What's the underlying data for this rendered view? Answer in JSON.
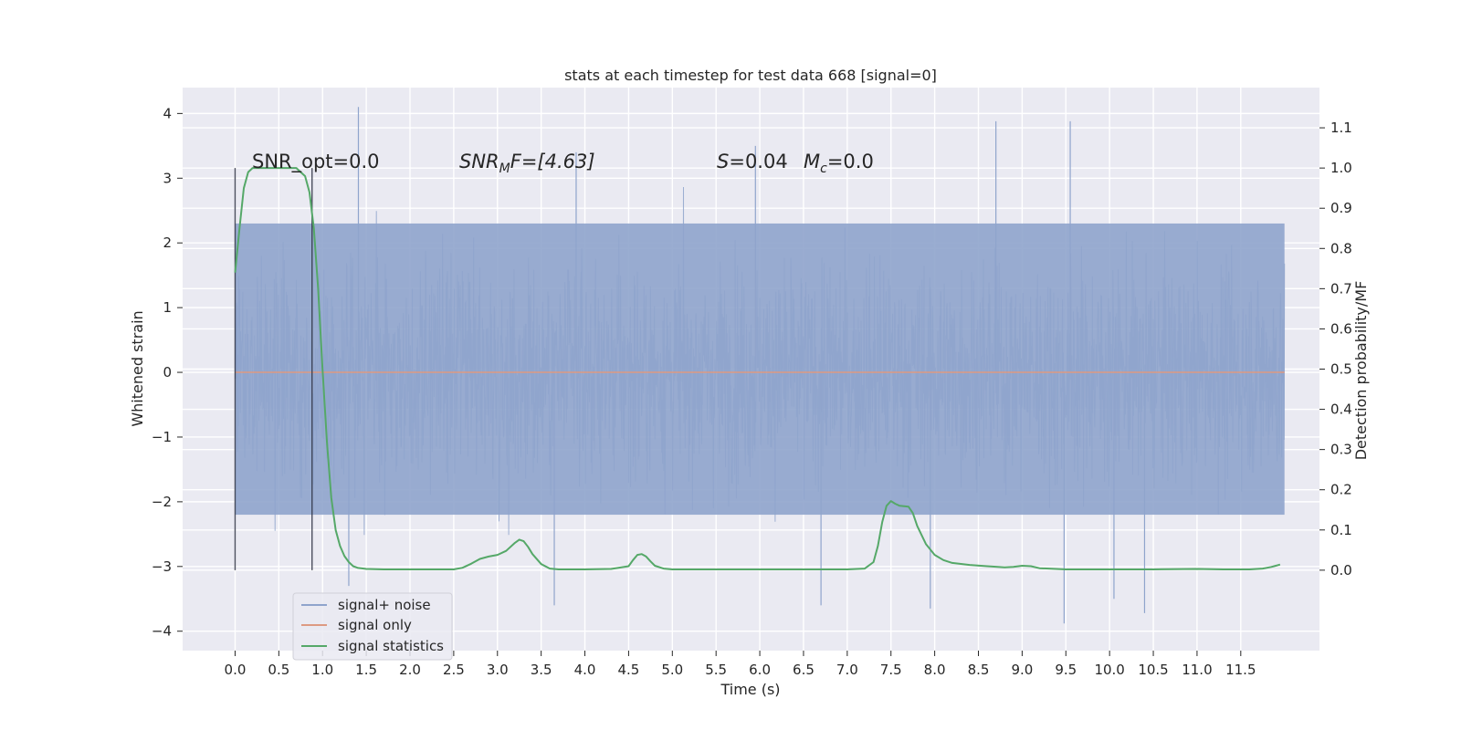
{
  "chart_data": {
    "type": "line",
    "title": "stats at each timestep for test data 668 [signal=0]",
    "xlabel": "Time (s)",
    "ylabel": "Whitened strain",
    "ylabel_right": "Detection probability/MF",
    "xlim": [
      -0.6,
      12.4
    ],
    "ylim": [
      -4.3,
      4.4
    ],
    "ylim_right": [
      -0.2,
      1.2
    ],
    "x_ticks": [
      "0.0",
      "0.5",
      "1.0",
      "1.5",
      "2.0",
      "2.5",
      "3.0",
      "3.5",
      "4.0",
      "4.5",
      "5.0",
      "5.5",
      "6.0",
      "6.5",
      "7.0",
      "7.5",
      "8.0",
      "8.5",
      "9.0",
      "9.5",
      "10.0",
      "10.5",
      "11.0",
      "11.5"
    ],
    "y_ticks": [
      "4",
      "3",
      "2",
      "1",
      "0",
      "−1",
      "−2",
      "−3",
      "−4"
    ],
    "y_ticks_right": [
      "1.1",
      "1.0",
      "0.9",
      "0.8",
      "0.7",
      "0.6",
      "0.5",
      "0.4",
      "0.3",
      "0.2",
      "0.1",
      "0.0"
    ],
    "grid": true,
    "legend_position": "lower-left",
    "annotations": {
      "snr_opt": "SNR_opt=0.0",
      "snr_mf_main": "SNR",
      "snr_mf_sub": "M",
      "snr_mf_tail": "F=[4.63]",
      "s_main": "S",
      "s_tail": "=0.04",
      "mc_main": "M",
      "mc_sub": "c",
      "mc_tail": "=0.0"
    },
    "vertical_markers": [
      0.0,
      0.88
    ],
    "series": [
      {
        "name": "signal+ noise",
        "color": "#8fa4cc",
        "time_range": [
          0.0,
          12.0
        ],
        "band_lower": -2.2,
        "band_upper": 2.3,
        "envelope_extremes": [
          {
            "x": 1.41,
            "y": 4.1
          },
          {
            "x": 8.7,
            "y": 3.88
          },
          {
            "x": 9.55,
            "y": 3.88
          },
          {
            "x": 9.48,
            "y": -3.88
          },
          {
            "x": 10.4,
            "y": -3.72
          },
          {
            "x": 7.95,
            "y": -3.65
          },
          {
            "x": 3.65,
            "y": -3.6
          },
          {
            "x": 6.7,
            "y": -3.6
          },
          {
            "x": 5.95,
            "y": 3.5
          },
          {
            "x": 3.9,
            "y": 3.4
          },
          {
            "x": 10.05,
            "y": -3.5
          },
          {
            "x": 1.3,
            "y": -3.3
          }
        ]
      },
      {
        "name": "signal only",
        "color": "#dd9a82",
        "time_range": [
          0.0,
          12.0
        ],
        "value": 0.0
      },
      {
        "name": "signal statistics",
        "color": "#55a868",
        "axis": "right",
        "x": [
          0.0,
          0.05,
          0.1,
          0.15,
          0.2,
          0.3,
          0.4,
          0.5,
          0.6,
          0.7,
          0.75,
          0.8,
          0.85,
          0.9,
          0.95,
          1.0,
          1.05,
          1.1,
          1.15,
          1.2,
          1.25,
          1.3,
          1.35,
          1.4,
          1.5,
          1.7,
          2.0,
          2.5,
          2.6,
          2.7,
          2.8,
          2.9,
          3.0,
          3.1,
          3.2,
          3.25,
          3.3,
          3.35,
          3.4,
          3.5,
          3.6,
          3.7,
          4.0,
          4.3,
          4.5,
          4.55,
          4.6,
          4.65,
          4.7,
          4.75,
          4.8,
          4.9,
          5.0,
          5.5,
          6.0,
          6.5,
          7.0,
          7.2,
          7.3,
          7.35,
          7.4,
          7.45,
          7.5,
          7.55,
          7.6,
          7.7,
          7.75,
          7.8,
          7.9,
          8.0,
          8.1,
          8.2,
          8.4,
          8.6,
          8.8,
          8.9,
          9.0,
          9.1,
          9.2,
          9.5,
          10.0,
          10.5,
          11.0,
          11.3,
          11.6,
          11.75,
          11.85,
          11.9,
          11.95
        ],
        "y": [
          0.74,
          0.85,
          0.95,
          0.99,
          1.0,
          1.0,
          1.0,
          1.0,
          1.0,
          1.0,
          0.99,
          0.98,
          0.94,
          0.85,
          0.7,
          0.5,
          0.32,
          0.18,
          0.1,
          0.06,
          0.035,
          0.02,
          0.01,
          0.006,
          0.003,
          0.002,
          0.002,
          0.002,
          0.006,
          0.016,
          0.028,
          0.034,
          0.038,
          0.048,
          0.068,
          0.076,
          0.072,
          0.058,
          0.04,
          0.015,
          0.004,
          0.002,
          0.002,
          0.003,
          0.01,
          0.025,
          0.038,
          0.04,
          0.034,
          0.022,
          0.011,
          0.004,
          0.002,
          0.002,
          0.002,
          0.002,
          0.002,
          0.004,
          0.02,
          0.06,
          0.12,
          0.16,
          0.172,
          0.165,
          0.16,
          0.158,
          0.142,
          0.11,
          0.065,
          0.038,
          0.025,
          0.018,
          0.013,
          0.01,
          0.007,
          0.008,
          0.011,
          0.01,
          0.005,
          0.002,
          0.002,
          0.002,
          0.003,
          0.002,
          0.002,
          0.004,
          0.008,
          0.011,
          0.014
        ]
      }
    ]
  }
}
